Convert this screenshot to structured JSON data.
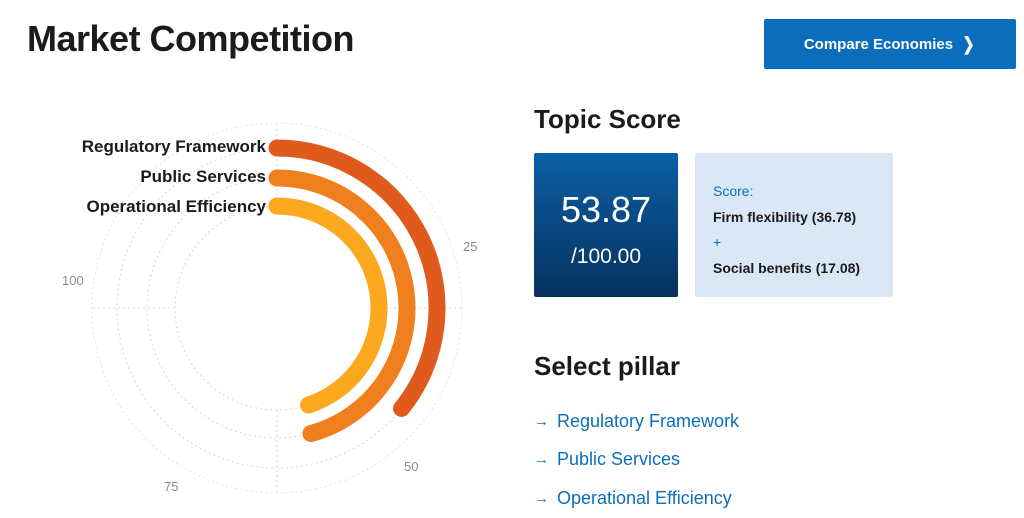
{
  "page": {
    "title": "Market Competition"
  },
  "header": {
    "compare_button": "Compare Economies"
  },
  "chart_data": {
    "type": "radial-bar",
    "series": [
      {
        "name": "Regulatory Framework",
        "value": 35.8,
        "color": "#e05a1e"
      },
      {
        "name": "Public Services",
        "value": 45.8,
        "color": "#f0801e"
      },
      {
        "name": "Operational Efficiency",
        "value": 45.0,
        "color": "#fba81e"
      }
    ],
    "range": [
      0,
      100
    ],
    "ticks": [
      "25",
      "50",
      "75",
      "100"
    ]
  },
  "topic_score": {
    "title": "Topic Score",
    "value": "53.87",
    "max": "/100.00",
    "breakdown_label": "Score:",
    "item1": "Firm flexibility (36.78)",
    "plus": "+",
    "item2": "Social benefits (17.08)"
  },
  "pillars": {
    "title": "Select pillar",
    "items": [
      "Regulatory Framework",
      "Public Services",
      "Operational Efficiency"
    ]
  },
  "colors": {
    "accent": "#0a6ebd",
    "score_box_top": "#0b5fa6",
    "score_box_bottom": "#06315e",
    "breakdown_bg": "#dae8f6"
  }
}
